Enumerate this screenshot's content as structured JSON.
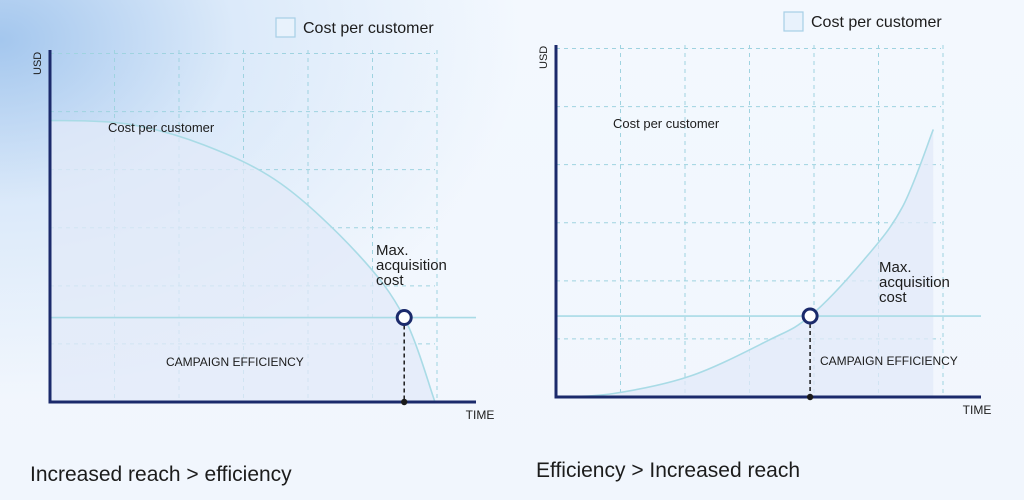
{
  "colors": {
    "axis": "#1b2a6b",
    "grid": "#9fd3e0",
    "curve": "#a9dbe6",
    "area": "#e2e9f8",
    "marker": "#1b2a6b"
  },
  "chart_data": [
    {
      "type": "line",
      "caption": "Increased reach > efficiency",
      "legend": {
        "label": "Cost per customer",
        "placement": "top-right"
      },
      "xlabel": "TIME",
      "ylabel": "USD",
      "xlim": [
        0,
        1
      ],
      "ylim": [
        0,
        1
      ],
      "grid": true,
      "annotations": {
        "curve_label": "Cost per customer",
        "threshold_label": [
          "Max.",
          "acquisition",
          "cost"
        ],
        "efficiency_label": "CAMPAIGN EFFICIENCY"
      },
      "curve_shape": "concave-decreasing",
      "series": [
        {
          "name": "Cost per customer",
          "x": [
            0,
            0.2,
            0.4,
            0.6,
            0.8,
            0.92,
            1.0
          ],
          "y": [
            0.8,
            0.79,
            0.73,
            0.62,
            0.42,
            0.24,
            0.0
          ]
        }
      ],
      "threshold_y": 0.24,
      "intersection_x": 0.92
    },
    {
      "type": "line",
      "caption": "Efficiency > Increased reach",
      "legend": {
        "label": "Cost per customer",
        "placement": "top-right"
      },
      "xlabel": "TIME",
      "ylabel": "USD",
      "xlim": [
        0,
        1
      ],
      "ylim": [
        0,
        1
      ],
      "grid": true,
      "annotations": {
        "curve_label": "Cost per customer",
        "threshold_label": [
          "Max.",
          "acquisition",
          "cost"
        ],
        "efficiency_label": "CAMPAIGN EFFICIENCY"
      },
      "curve_shape": "convex-increasing",
      "series": [
        {
          "name": "Cost per customer",
          "x": [
            0,
            0.15,
            0.35,
            0.55,
            0.66,
            0.8,
            0.9,
            0.98
          ],
          "y": [
            0.0,
            0.01,
            0.06,
            0.16,
            0.23,
            0.39,
            0.54,
            0.76
          ]
        }
      ],
      "threshold_y": 0.23,
      "intersection_x": 0.66
    }
  ]
}
